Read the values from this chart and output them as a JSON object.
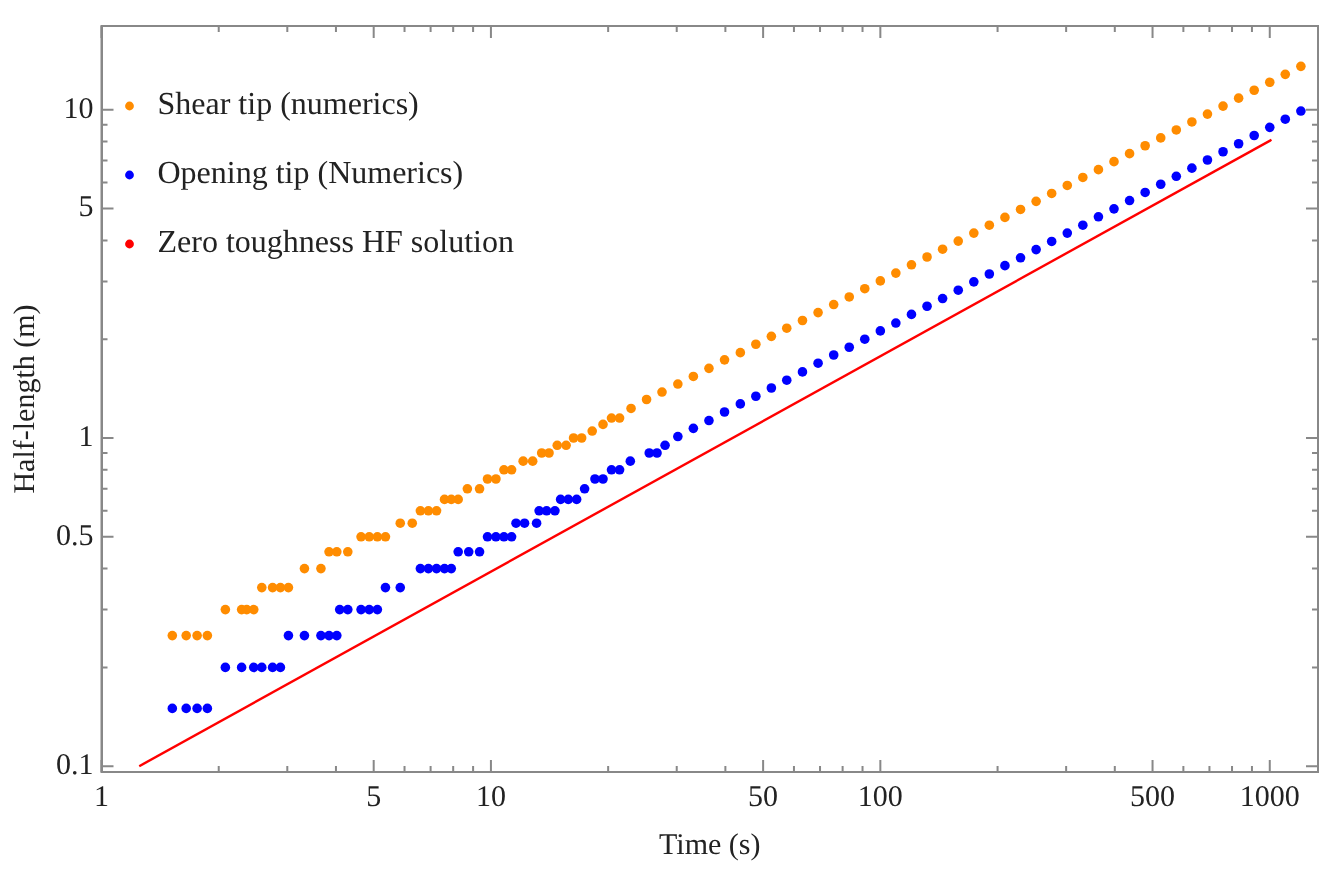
{
  "chart_data": {
    "type": "scatter",
    "xlabel": "Time (s)",
    "ylabel": "Half-length (m)",
    "log": "xy",
    "grid": false,
    "legend": "top left",
    "marker": "circle",
    "xlim": [
      1,
      1330
    ],
    "ylim": [
      0.096,
      18
    ],
    "xticks": [
      1,
      {
        "value": 2,
        "label": null
      },
      {
        "value": 3,
        "label": null
      },
      {
        "value": 4,
        "label": null
      },
      5,
      {
        "value": 6,
        "label": null
      },
      {
        "value": 7,
        "label": null
      },
      {
        "value": 8,
        "label": null
      },
      {
        "value": 9,
        "label": null
      },
      10,
      {
        "value": 20,
        "label": null
      },
      {
        "value": 30,
        "label": null
      },
      {
        "value": 40,
        "label": null
      },
      50,
      {
        "value": 60,
        "label": null
      },
      {
        "value": 70,
        "label": null
      },
      {
        "value": 80,
        "label": null
      },
      {
        "value": 90,
        "label": null
      },
      100,
      {
        "value": 200,
        "label": null
      },
      {
        "value": 300,
        "label": null
      },
      {
        "value": 400,
        "label": null
      },
      500,
      {
        "value": 600,
        "label": null
      },
      {
        "value": 700,
        "label": null
      },
      {
        "value": 800,
        "label": null
      },
      {
        "value": 900,
        "label": null
      },
      1000
    ],
    "yticks": [
      0.1,
      {
        "value": 0.2,
        "label": null
      },
      {
        "value": 0.3,
        "label": null
      },
      {
        "value": 0.4,
        "label": null
      },
      0.5,
      {
        "value": 0.6,
        "label": null
      },
      {
        "value": 0.7,
        "label": null
      },
      {
        "value": 0.8,
        "label": null
      },
      {
        "value": 0.9,
        "label": null
      },
      1,
      {
        "value": 2,
        "label": null
      },
      {
        "value": 3,
        "label": null
      },
      {
        "value": 4,
        "label": null
      },
      5,
      {
        "value": 6,
        "label": null
      },
      {
        "value": 7,
        "label": null
      },
      {
        "value": 8,
        "label": null
      },
      {
        "value": 9,
        "label": null
      },
      10
    ],
    "series": [
      {
        "name": "Shear tip (numerics)",
        "color": "#ff8c00",
        "x": [
          1.52,
          1.65,
          1.76,
          1.87,
          2.08,
          2.29,
          2.36,
          2.46,
          2.58,
          2.75,
          2.88,
          3.02,
          3.32,
          3.66,
          3.84,
          4.02,
          4.29,
          4.64,
          4.87,
          5.11,
          5.36,
          5.85,
          6.28,
          6.59,
          6.91,
          7.25,
          7.6,
          7.91,
          8.24,
          8.7,
          9.35,
          9.8,
          10.3,
          10.8,
          11.3,
          12.1,
          12.8,
          13.5,
          14.1,
          14.8,
          15.6,
          16.3,
          17.1,
          18.2,
          19.4,
          20.4,
          21.4,
          22.9,
          25.1,
          27.5,
          30.2,
          33.1,
          36.3,
          39.8,
          43.7,
          47.9,
          52.5,
          57.5,
          63.1,
          69.2,
          75.9,
          83.2,
          91.2,
          100,
          109.6,
          120.2,
          131.8,
          144.5,
          158.5,
          173.8,
          190.5,
          208.9,
          229.1,
          251.2,
          275.4,
          302,
          331.1,
          363.1,
          398.1,
          436.5,
          478.6,
          524.8,
          575.4,
          631,
          691.8,
          758.6,
          831.8,
          912,
          1000,
          1096,
          1202
        ],
        "values": [
          0.25,
          0.25,
          0.25,
          0.25,
          0.3,
          0.3,
          0.3,
          0.3,
          0.35,
          0.35,
          0.35,
          0.35,
          0.4,
          0.4,
          0.45,
          0.45,
          0.45,
          0.5,
          0.5,
          0.5,
          0.5,
          0.55,
          0.55,
          0.6,
          0.6,
          0.6,
          0.65,
          0.65,
          0.65,
          0.7,
          0.7,
          0.75,
          0.75,
          0.8,
          0.8,
          0.85,
          0.85,
          0.9,
          0.9,
          0.95,
          0.95,
          1.0,
          1.0,
          1.05,
          1.1,
          1.15,
          1.15,
          1.23,
          1.31,
          1.38,
          1.46,
          1.54,
          1.63,
          1.73,
          1.82,
          1.93,
          2.04,
          2.16,
          2.28,
          2.41,
          2.55,
          2.69,
          2.85,
          3.01,
          3.18,
          3.37,
          3.56,
          3.76,
          3.98,
          4.21,
          4.45,
          4.7,
          4.97,
          5.26,
          5.56,
          5.88,
          6.22,
          6.57,
          6.95,
          7.35,
          7.77,
          8.21,
          8.68,
          9.18,
          9.7,
          10.26,
          10.85,
          11.47,
          12.13,
          12.82,
          13.56
        ]
      },
      {
        "name": "Opening tip (Numerics)",
        "color": "#0000ff",
        "x": [
          1.52,
          1.65,
          1.76,
          1.87,
          2.08,
          2.29,
          2.46,
          2.58,
          2.75,
          2.88,
          3.02,
          3.32,
          3.66,
          3.84,
          4.02,
          4.09,
          4.29,
          4.64,
          4.87,
          5.11,
          5.36,
          5.85,
          6.59,
          6.91,
          7.25,
          7.6,
          7.91,
          8.24,
          8.77,
          9.35,
          9.8,
          10.3,
          10.8,
          11.3,
          11.6,
          12.2,
          13.1,
          13.3,
          13.9,
          14.6,
          15.1,
          15.8,
          16.6,
          17.4,
          18.5,
          19.4,
          20.4,
          21.4,
          22.8,
          25.5,
          26.7,
          28.0,
          30.2,
          33.1,
          36.3,
          39.8,
          43.7,
          47.9,
          52.5,
          57.5,
          63.1,
          69.2,
          75.9,
          83.2,
          91.2,
          100,
          109.6,
          120.2,
          131.8,
          144.5,
          158.5,
          173.8,
          190.5,
          208.9,
          229.1,
          251.2,
          275.4,
          302,
          331.1,
          363.1,
          398.1,
          436.5,
          478.6,
          524.8,
          575.4,
          631,
          691.8,
          758.6,
          831.8,
          912,
          1000,
          1096,
          1202
        ],
        "values": [
          0.15,
          0.15,
          0.15,
          0.15,
          0.2,
          0.2,
          0.2,
          0.2,
          0.2,
          0.2,
          0.25,
          0.25,
          0.25,
          0.25,
          0.25,
          0.3,
          0.3,
          0.3,
          0.3,
          0.3,
          0.35,
          0.35,
          0.4,
          0.4,
          0.4,
          0.4,
          0.4,
          0.45,
          0.45,
          0.45,
          0.5,
          0.5,
          0.5,
          0.5,
          0.55,
          0.55,
          0.55,
          0.6,
          0.6,
          0.6,
          0.65,
          0.65,
          0.65,
          0.7,
          0.75,
          0.75,
          0.8,
          0.8,
          0.85,
          0.9,
          0.9,
          0.95,
          1.01,
          1.07,
          1.13,
          1.2,
          1.27,
          1.34,
          1.42,
          1.5,
          1.59,
          1.69,
          1.79,
          1.89,
          2.0,
          2.12,
          2.24,
          2.38,
          2.52,
          2.66,
          2.82,
          2.99,
          3.16,
          3.35,
          3.54,
          3.75,
          3.97,
          4.21,
          4.45,
          4.72,
          4.99,
          5.29,
          5.6,
          5.93,
          6.27,
          6.64,
          7.03,
          7.45,
          7.88,
          8.35,
          8.84,
          9.36,
          9.91
        ]
      },
      {
        "name": "Zero toughness HF solution",
        "type": "line",
        "marker": "none",
        "color": "#ff0000",
        "x": [
          1.25,
          1010
        ],
        "values": [
          0.1,
          8.1
        ]
      }
    ]
  }
}
